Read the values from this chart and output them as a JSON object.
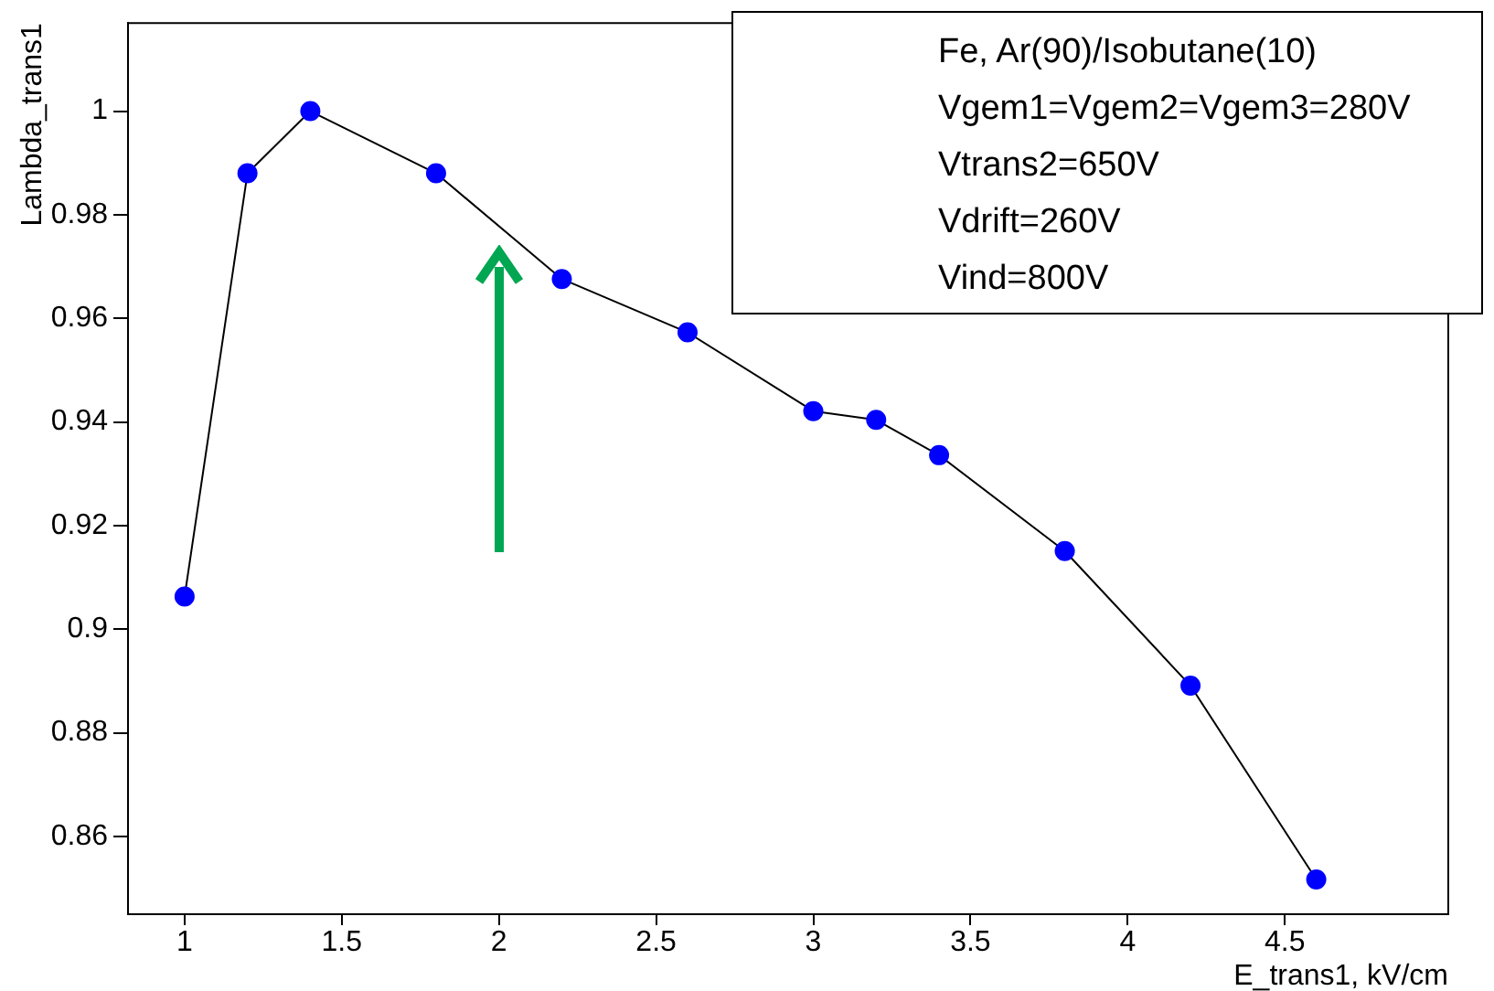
{
  "chart_data": {
    "type": "line",
    "xlabel": "E_trans1, kV/cm",
    "ylabel": "Lambda_trans1",
    "x": [
      1,
      1.2,
      1.4,
      1.8,
      2.2,
      2.6,
      3.0,
      3.2,
      3.4,
      3.8,
      4.2,
      4.6
    ],
    "series": [
      {
        "color": "#0000ff",
        "values": [
          0.9063,
          0.988,
          1.0,
          0.988,
          0.9676,
          0.9573,
          0.9421,
          0.9404,
          0.9336,
          0.9151,
          0.8891,
          0.8517
        ]
      }
    ],
    "xlim": [
      0.82,
      5.02
    ],
    "xticks": [
      1,
      1.5,
      2,
      2.5,
      3,
      3.5,
      4,
      4.5
    ],
    "ylim": [
      0.845,
      1.017
    ],
    "yticks": [
      0.86,
      0.88,
      0.9,
      0.92,
      0.94,
      0.96,
      0.98,
      1
    ],
    "grid": false,
    "legend": false,
    "marker": "circle",
    "line_style": "solid",
    "annotations": [
      "Fe, Ar(90)/Isobutane(10)",
      "Vgem1=Vgem2=Vgem3=280V",
      "Vtrans2=650V",
      "Vdrift=260V",
      "Vind=800V"
    ]
  }
}
